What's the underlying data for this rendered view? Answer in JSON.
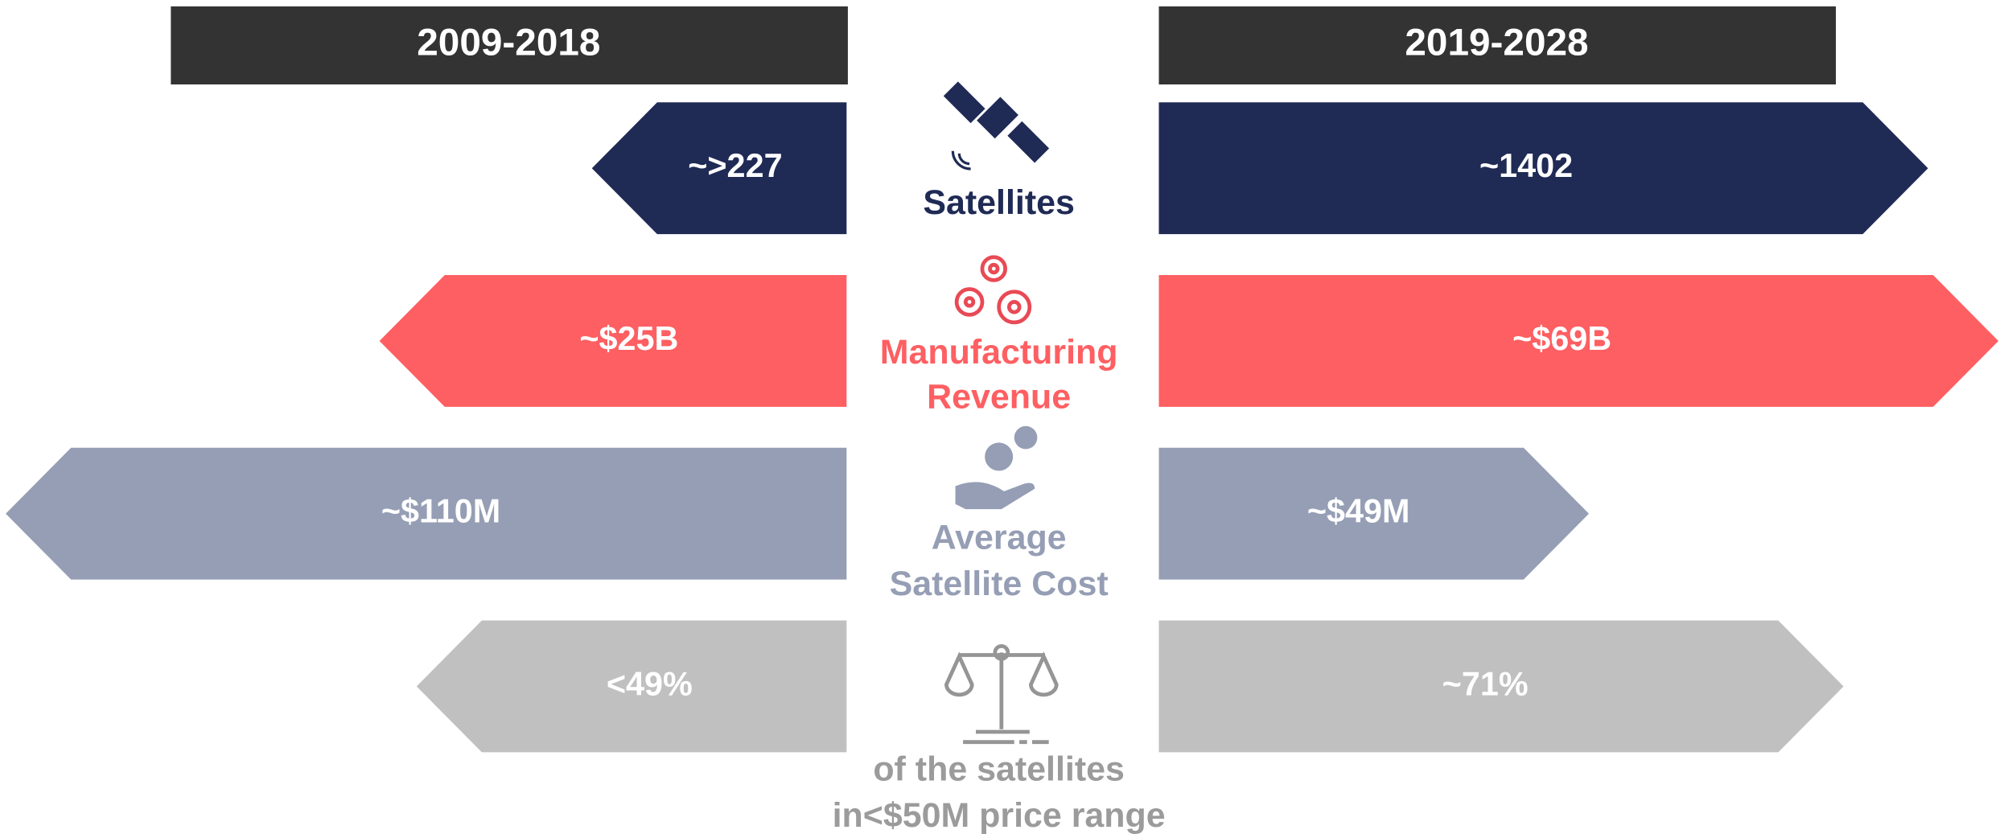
{
  "headers": [
    "2009-2018",
    "2019-2028"
  ],
  "rows": [
    {
      "label": [
        "Satellites"
      ],
      "left": "~>227",
      "right": "~1402"
    },
    {
      "label": [
        "Manufacturing",
        "Revenue"
      ],
      "left": "~$25B",
      "right": "~$69B"
    },
    {
      "label": [
        "Average",
        "Satellite Cost"
      ],
      "left": "~$110M",
      "right": "~$49M"
    },
    {
      "label": [
        "of the satellites",
        "in<$50M price range"
      ],
      "left": "<49%",
      "right": "~71%"
    }
  ]
}
